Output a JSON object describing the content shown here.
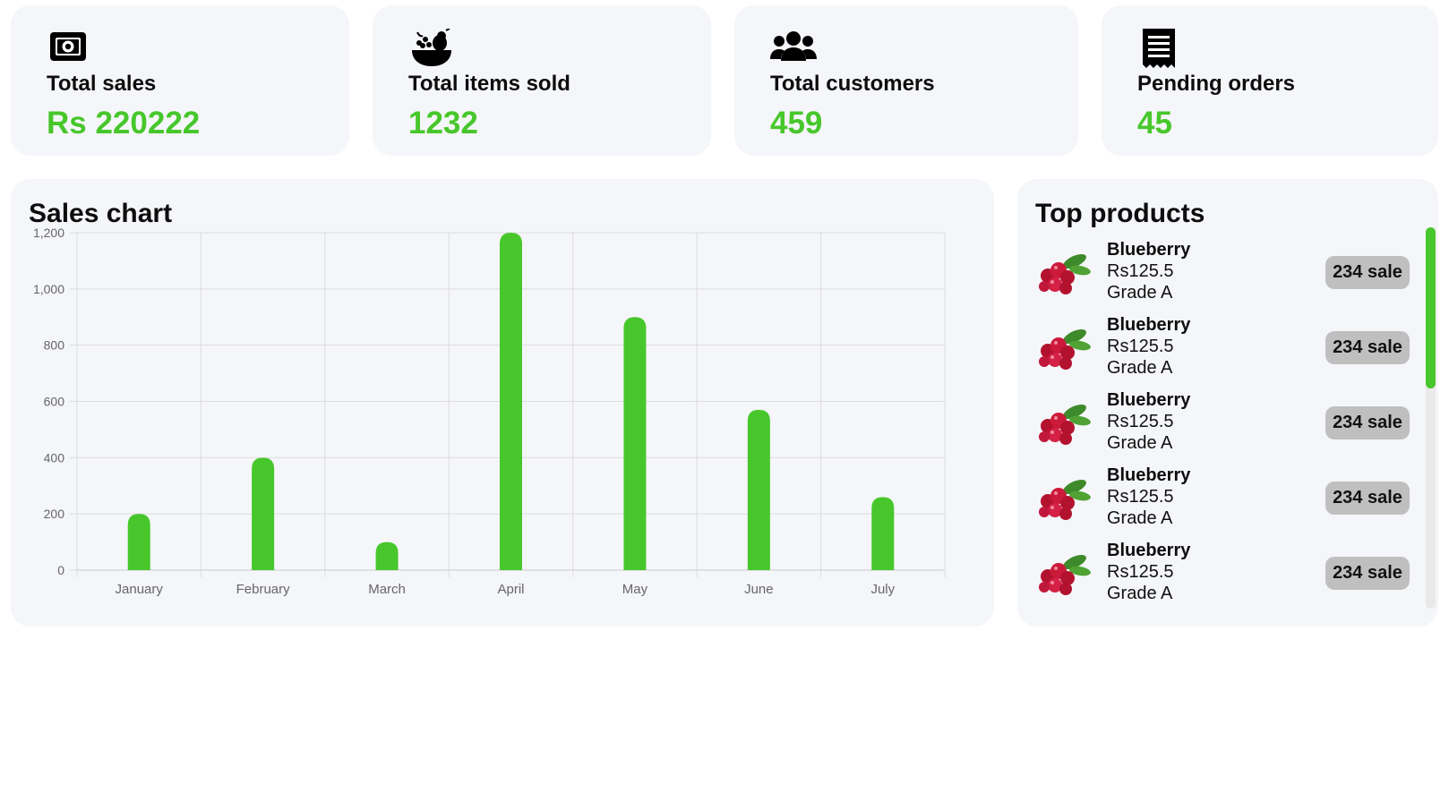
{
  "stats": [
    {
      "label": "Total sales",
      "value": "Rs 220222",
      "icon": "money-icon"
    },
    {
      "label": "Total items sold",
      "value": "1232",
      "icon": "fruit-bowl-icon"
    },
    {
      "label": "Total customers",
      "value": "459",
      "icon": "users-icon"
    },
    {
      "label": "Pending orders",
      "value": "45",
      "icon": "receipt-icon"
    }
  ],
  "sales_chart": {
    "title": "Sales chart"
  },
  "chart_data": {
    "type": "bar",
    "categories": [
      "January",
      "February",
      "March",
      "April",
      "May",
      "June",
      "July"
    ],
    "values": [
      200,
      400,
      100,
      1200,
      900,
      570,
      260
    ],
    "ylim": [
      0,
      1200
    ],
    "yticks": [
      "0",
      "200",
      "400",
      "600",
      "800",
      "1,000",
      "1,200"
    ],
    "grid": true,
    "bar_color": "#47c72b"
  },
  "top_products": {
    "title": "Top products",
    "items": [
      {
        "name": "Blueberry",
        "price": "Rs125.5",
        "grade": "Grade A",
        "sales": "234 sale"
      },
      {
        "name": "Blueberry",
        "price": "Rs125.5",
        "grade": "Grade A",
        "sales": "234 sale"
      },
      {
        "name": "Blueberry",
        "price": "Rs125.5",
        "grade": "Grade A",
        "sales": "234 sale"
      },
      {
        "name": "Blueberry",
        "price": "Rs125.5",
        "grade": "Grade A",
        "sales": "234 sale"
      },
      {
        "name": "Blueberry",
        "price": "Rs125.5",
        "grade": "Grade A",
        "sales": "234 sale"
      }
    ]
  },
  "colors": {
    "accent": "#47c72b",
    "card_bg": "#f5f6f9",
    "badge_bg": "#bfbfbf"
  }
}
